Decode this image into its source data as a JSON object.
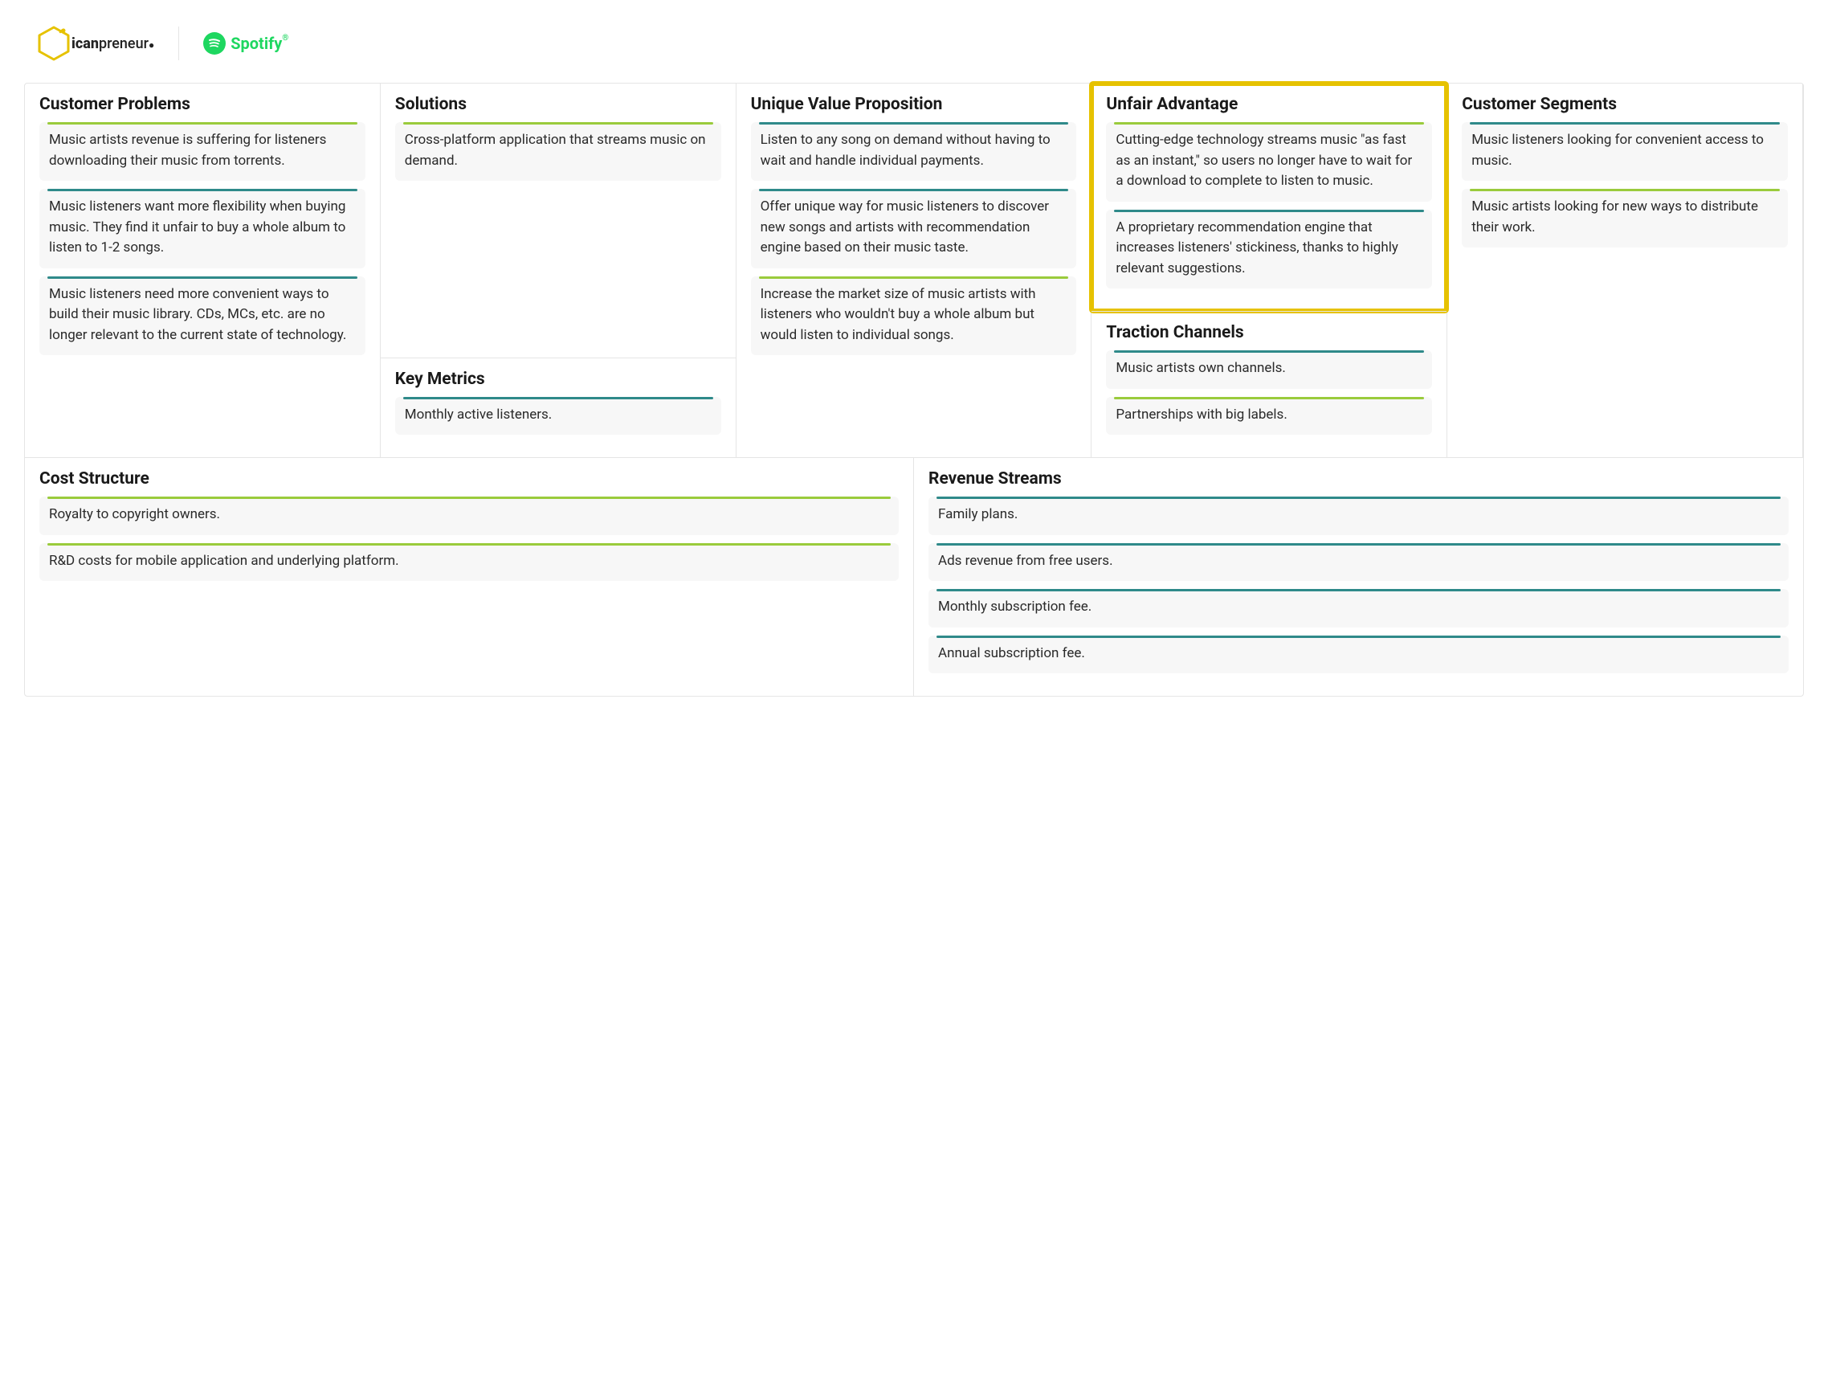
{
  "layout": {
    "colors": {
      "teal": "#2f8a8a",
      "green": "#9acb3c",
      "highlight_border": "#e6c200",
      "card_bg": "#f7f7f7",
      "border": "#e5e5e5",
      "text": "#1a1a1a",
      "spotify_green": "#1ed760"
    },
    "highlight_section_index": 3,
    "font_family": "sans-serif",
    "title_fontsize": 21,
    "body_fontsize": 17
  },
  "header": {
    "logo1_bold": "ican",
    "logo1_rest": "preneur",
    "logo2": "Spotify"
  },
  "columns": [
    {
      "sections": [
        {
          "title": "Customer Problems",
          "cards": [
            {
              "color": "green",
              "text": "Music artists revenue is suffering for listeners downloading their music from torrents."
            },
            {
              "color": "teal",
              "text": "Music listeners want more flexibility when buying music. They find it unfair to buy a whole album to listen to 1-2 songs."
            },
            {
              "color": "teal",
              "text": "Music listeners need more convenient ways to build their music library. CDs, MCs, etc. are no longer relevant to the current state of technology."
            }
          ]
        }
      ]
    },
    {
      "sections": [
        {
          "title": "Solutions",
          "cards": [
            {
              "color": "green",
              "text": "Cross-platform application that streams music on demand."
            }
          ]
        },
        {
          "title": "Key Metrics",
          "cards": [
            {
              "color": "teal",
              "text": "Monthly active listeners."
            }
          ]
        }
      ]
    },
    {
      "sections": [
        {
          "title": "Unique Value Proposition",
          "cards": [
            {
              "color": "teal",
              "text": "Listen to any song on demand without having to wait and handle individual payments."
            },
            {
              "color": "teal",
              "text": "Offer unique way for music listeners to discover new songs and artists with recommendation engine based on their music taste."
            },
            {
              "color": "green",
              "text": "Increase the market size of music artists with listeners who wouldn't buy a whole album but would listen to individual songs."
            }
          ]
        }
      ]
    },
    {
      "sections": [
        {
          "title": "Unfair Advantage",
          "highlight": true,
          "cards": [
            {
              "color": "green",
              "text": "Cutting-edge technology streams music \"as fast as an instant,\" so users no longer have to wait for a download to complete to listen to music."
            },
            {
              "color": "teal",
              "text": "A proprietary recommendation engine that increases listeners' stickiness, thanks to highly relevant suggestions."
            }
          ]
        },
        {
          "title": "Traction Channels",
          "cards": [
            {
              "color": "teal",
              "text": "Music artists own channels."
            },
            {
              "color": "green",
              "text": "Partnerships with big labels."
            }
          ]
        }
      ]
    },
    {
      "sections": [
        {
          "title": "Customer Segments",
          "cards": [
            {
              "color": "teal",
              "text": "Music listeners looking for convenient access to music."
            },
            {
              "color": "green",
              "text": "Music artists looking for new ways to distribute their work."
            }
          ]
        }
      ]
    }
  ],
  "bottom": [
    {
      "title": "Cost Structure",
      "cards": [
        {
          "color": "green",
          "text": "Royalty to copyright owners."
        },
        {
          "color": "green",
          "text": "R&D costs for mobile application and underlying platform."
        }
      ]
    },
    {
      "title": "Revenue Streams",
      "cards": [
        {
          "color": "teal",
          "text": "Family plans."
        },
        {
          "color": "teal",
          "text": "Ads revenue from free users."
        },
        {
          "color": "teal",
          "text": "Monthly subscription fee."
        },
        {
          "color": "teal",
          "text": "Annual subscription fee."
        }
      ]
    }
  ]
}
